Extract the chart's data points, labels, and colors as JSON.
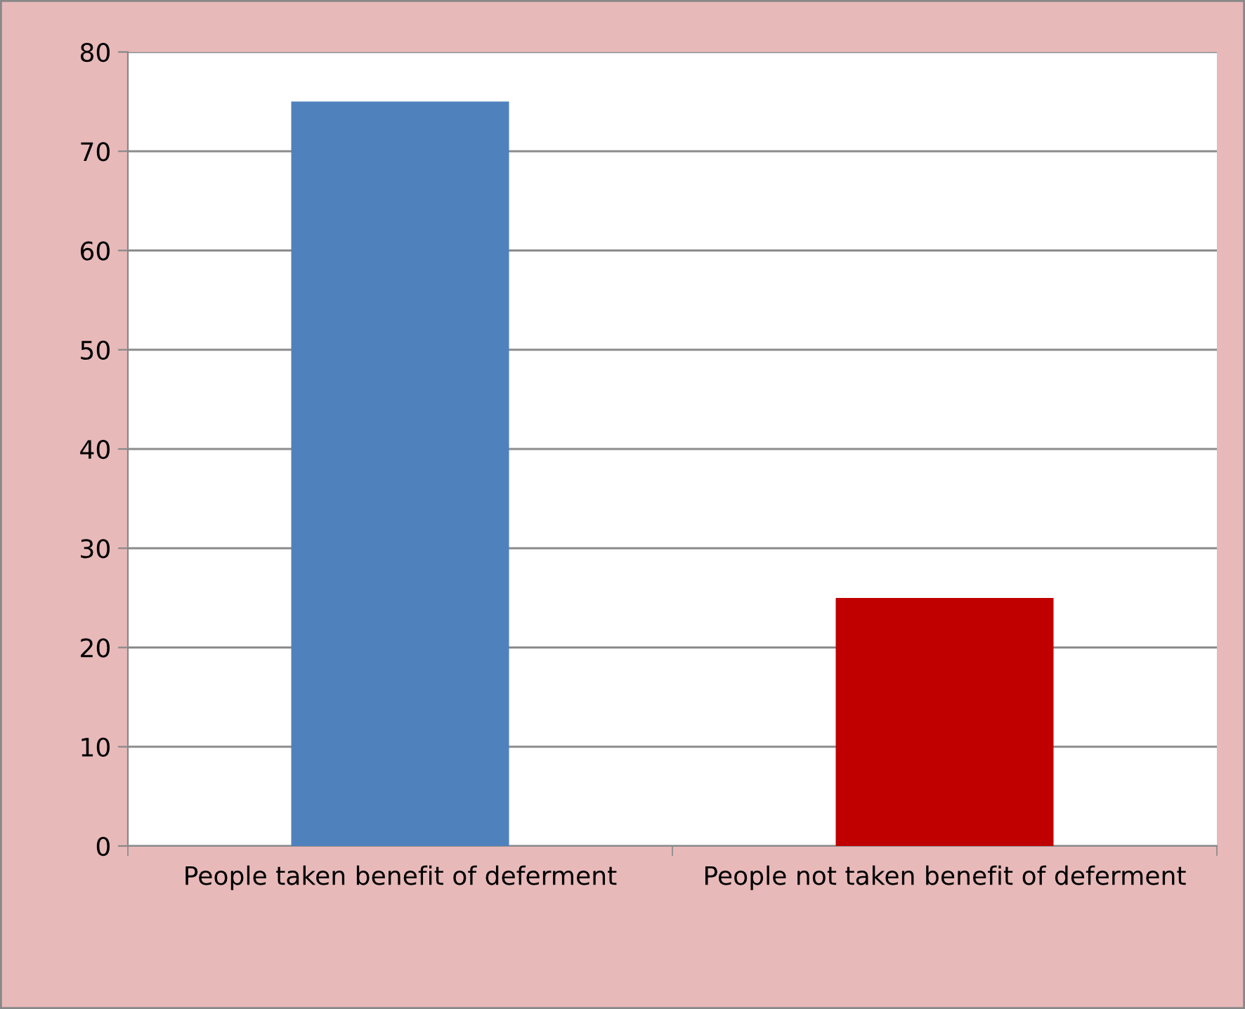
{
  "chart_data": {
    "type": "bar",
    "categories": [
      "People taken benefit of deferment",
      "People not taken benefit of deferment"
    ],
    "values": [
      75,
      25
    ],
    "colors": [
      "#4f81bd",
      "#c00000"
    ],
    "ylim": [
      0,
      80
    ],
    "yticks": [
      0,
      10,
      20,
      30,
      40,
      50,
      60,
      70,
      80
    ],
    "grid": "y",
    "legend": false
  }
}
